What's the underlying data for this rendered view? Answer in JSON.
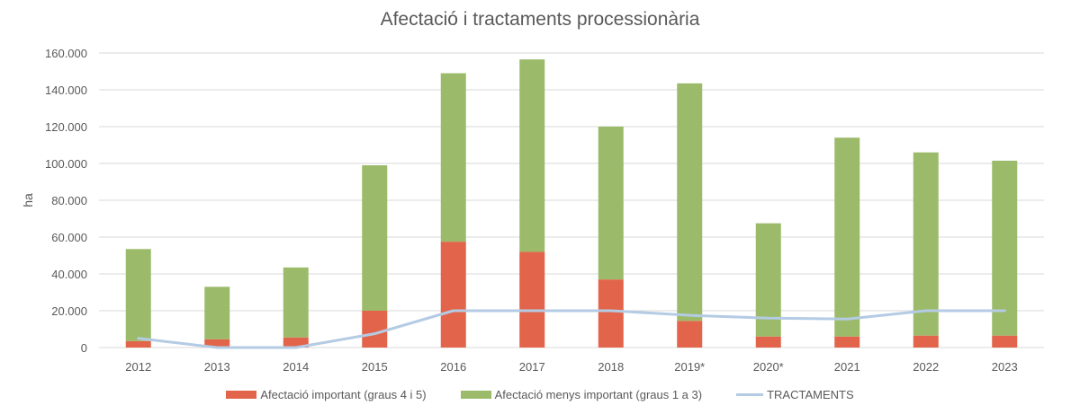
{
  "title": "Afectació i tractaments processionària",
  "chart_data": {
    "type": "bar",
    "stacked": true,
    "title": "Afectació i tractaments processionària",
    "xlabel": "",
    "ylabel": "ha",
    "ylim": [
      0,
      160000
    ],
    "yticks": [
      0,
      20000,
      40000,
      60000,
      80000,
      100000,
      120000,
      140000,
      160000
    ],
    "ytick_labels": [
      "0",
      "20.000",
      "40.000",
      "60.000",
      "80.000",
      "100.000",
      "120.000",
      "140.000",
      "160.000"
    ],
    "grid": true,
    "legend_position": "bottom",
    "categories": [
      "2012",
      "2013",
      "2014",
      "2015",
      "2016",
      "2017",
      "2018",
      "2019*",
      "2020*",
      "2021",
      "2022",
      "2023"
    ],
    "series": [
      {
        "name": "Afectació important (graus 4 i 5)",
        "type": "bar",
        "color": "#E2644A",
        "values": [
          3500,
          4500,
          5500,
          20000,
          57500,
          52000,
          37000,
          14500,
          6000,
          6000,
          6500,
          6500
        ]
      },
      {
        "name": "Afectació menys important (graus 1 a 3)",
        "type": "bar",
        "color": "#9BBB6A",
        "values": [
          50000,
          28500,
          38000,
          79000,
          91500,
          104500,
          83000,
          129000,
          61500,
          108000,
          99500,
          95000
        ]
      },
      {
        "name": "TRACTAMENTS",
        "type": "line",
        "color": "#B4CBE4",
        "values": [
          5000,
          0,
          0,
          7500,
          20000,
          20000,
          20000,
          17500,
          16000,
          15500,
          20000,
          20000
        ]
      }
    ]
  },
  "legend": {
    "items": [
      {
        "label": "Afectació important (graus 4 i 5)",
        "color": "#E2644A"
      },
      {
        "label": "Afectació menys important (graus 1 a 3)",
        "color": "#9BBB6A"
      },
      {
        "label": "TRACTAMENTS",
        "color": "#B4CBE4"
      }
    ]
  },
  "colors": {
    "grid": "#D9D9D9",
    "axis_text": "#595959"
  }
}
